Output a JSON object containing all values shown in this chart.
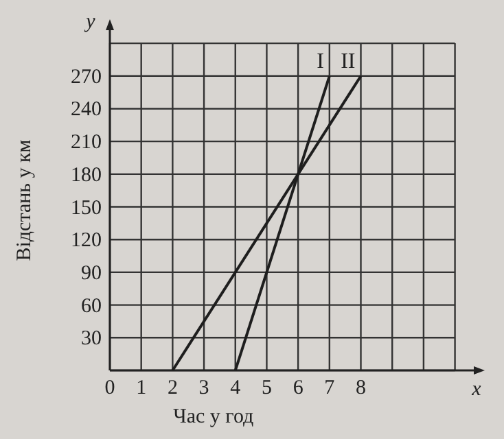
{
  "chart_data": {
    "type": "line",
    "xlabel": "Час у год",
    "ylabel": "Відстань у км",
    "annotations": [
      "x",
      "y"
    ],
    "xlim": [
      0,
      11.6
    ],
    "ylim": [
      0,
      312
    ],
    "xticks": [
      0,
      1,
      2,
      3,
      4,
      5,
      6,
      7,
      8,
      {
        "value": 9,
        "label": null
      },
      {
        "value": 10,
        "label": null
      },
      {
        "value": 11,
        "label": null
      }
    ],
    "yticks": [
      {
        "value": 0,
        "label": null
      },
      30,
      60,
      90,
      120,
      150,
      180,
      210,
      240,
      270,
      {
        "value": 300,
        "label": null
      }
    ],
    "grid": true,
    "marker": "none",
    "line_style": "solid",
    "series": [
      {
        "name": "I",
        "color": "#1e1e1e",
        "x": [
          4,
          7
        ],
        "values": [
          0,
          270
        ]
      },
      {
        "name": "II",
        "color": "#1e1e1e",
        "x": [
          2,
          8
        ],
        "values": [
          0,
          270
        ]
      }
    ]
  }
}
